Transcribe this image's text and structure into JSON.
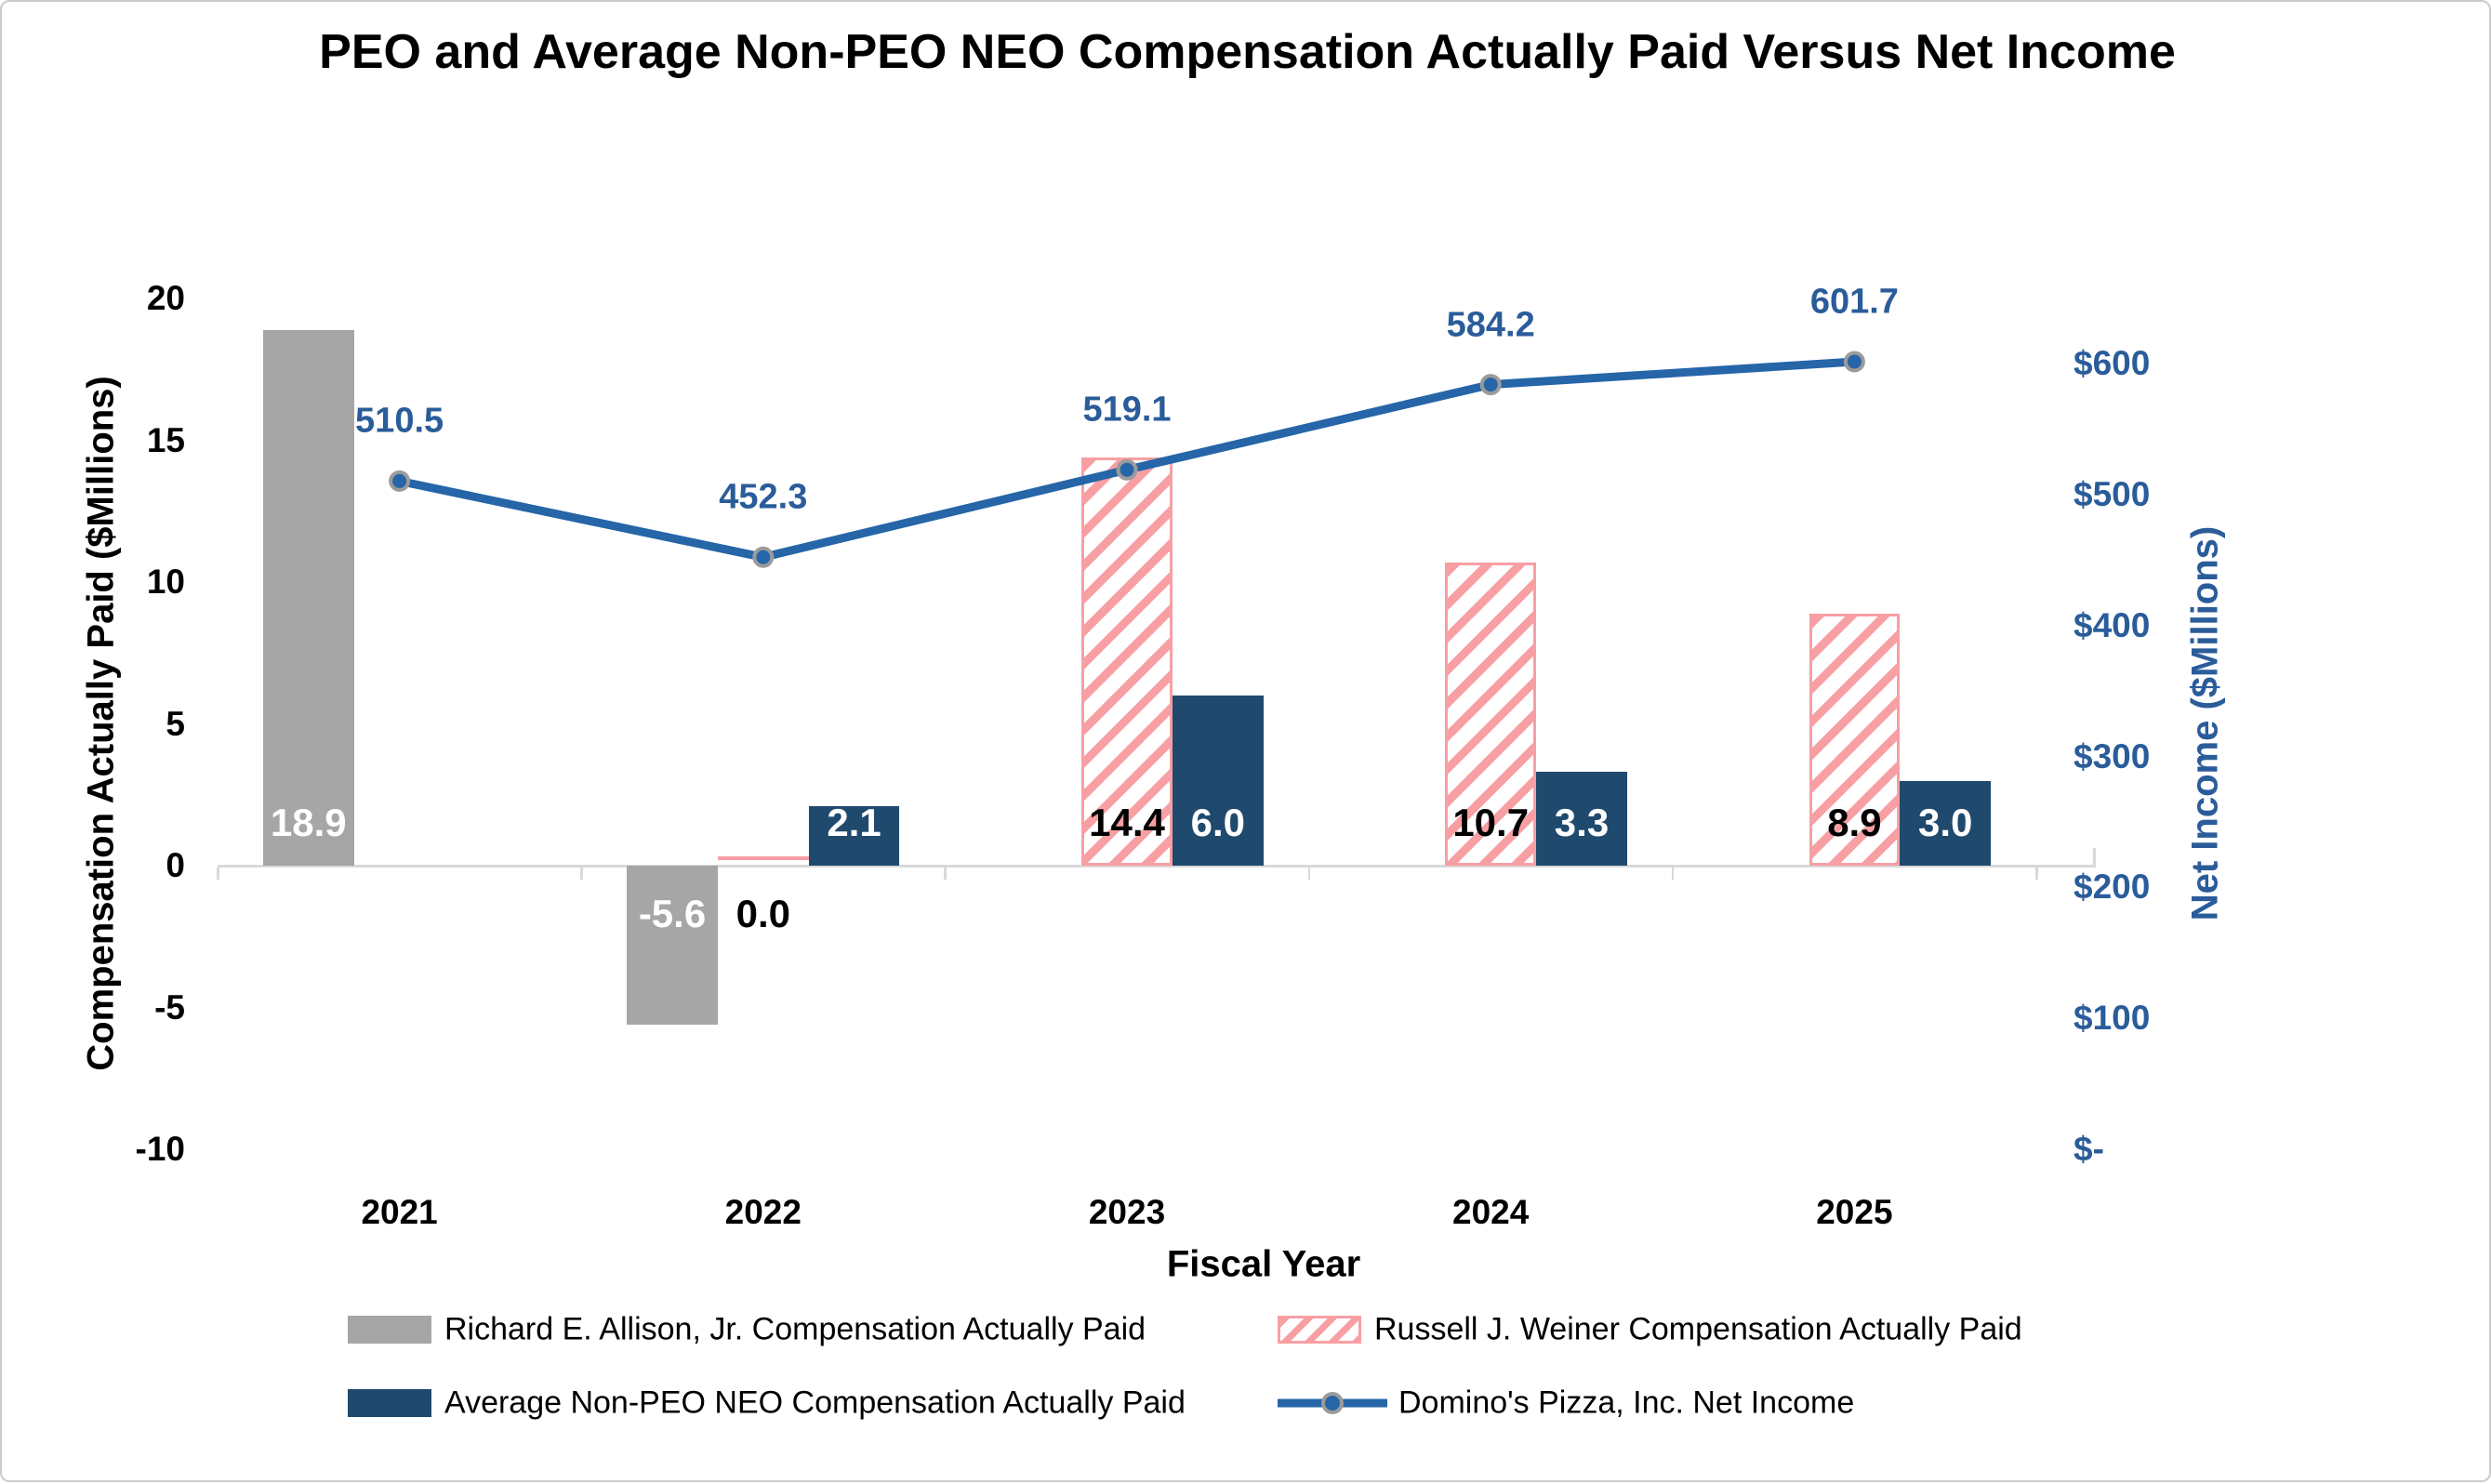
{
  "chart_data": {
    "type": "combo",
    "title": "PEO and Average Non-PEO NEO Compensation Actually Paid Versus Net Income",
    "xlabel": "Fiscal Year",
    "categories": [
      "2021",
      "2022",
      "2023",
      "2024",
      "2025"
    ],
    "left_axis": {
      "title": "Compensation Actually Paid ($Millions)",
      "min": -10,
      "max": 20,
      "step": 5,
      "tick_values": [
        20,
        15,
        10,
        5,
        0,
        -5,
        -10
      ],
      "tick_labels": [
        "20",
        "15",
        "10",
        "5",
        "0",
        "-5",
        "-10"
      ]
    },
    "right_axis": {
      "title": "Net Income ($Millions)",
      "min": 0,
      "max": 650,
      "step": 100,
      "tick_values": [
        600,
        500,
        400,
        300,
        200,
        100,
        0
      ],
      "tick_labels": [
        "$600",
        "$500",
        "$400",
        "$300",
        "$200",
        "$100",
        "$-"
      ]
    },
    "series": [
      {
        "key": "allison",
        "name": "Richard E. Allison, Jr. Compensation Actually Paid",
        "type": "bar",
        "slot": 0,
        "style": "solid",
        "color": "#a6a6a6",
        "label_color": "#ffffff",
        "values": [
          18.9,
          -5.6,
          null,
          null,
          null
        ],
        "labels": [
          "18.9",
          "-5.6",
          "",
          "",
          ""
        ]
      },
      {
        "key": "weiner",
        "name": "Russell J. Weiner Compensation Actually Paid",
        "type": "bar",
        "slot": 1,
        "style": "hatched",
        "color": "#f89fa4",
        "label_color": "#000000",
        "values": [
          null,
          0.0,
          14.4,
          10.7,
          8.9
        ],
        "labels": [
          "",
          "0.0",
          "14.4",
          "10.7",
          "8.9"
        ]
      },
      {
        "key": "neo",
        "name": "Average Non-PEO NEO Compensation Actually Paid",
        "type": "bar",
        "slot": 2,
        "style": "solid",
        "color": "#1f4a6e",
        "label_color": "#ffffff",
        "values": [
          null,
          2.1,
          6.0,
          3.3,
          3.0
        ],
        "labels": [
          "",
          "2.1",
          "6.0",
          "3.3",
          "3.0"
        ]
      },
      {
        "key": "net_income",
        "name": "Domino's Pizza, Inc. Net Income",
        "type": "line",
        "axis": "right",
        "color": "#2565a8",
        "marker_stroke": "#9b9b9b",
        "label_color": "#2a5c9a",
        "values": [
          510.5,
          452.3,
          519.1,
          584.2,
          601.7
        ],
        "labels": [
          "510.5",
          "452.3",
          "519.1",
          "584.2",
          "601.7"
        ]
      }
    ],
    "legend": {
      "rows": [
        [
          0,
          1
        ],
        [
          2,
          3
        ]
      ]
    },
    "layout_hints": {
      "grid": "off",
      "legend_position": "bottom",
      "axis_line_color": "#d9d9d9",
      "background": "#ffffff"
    }
  }
}
